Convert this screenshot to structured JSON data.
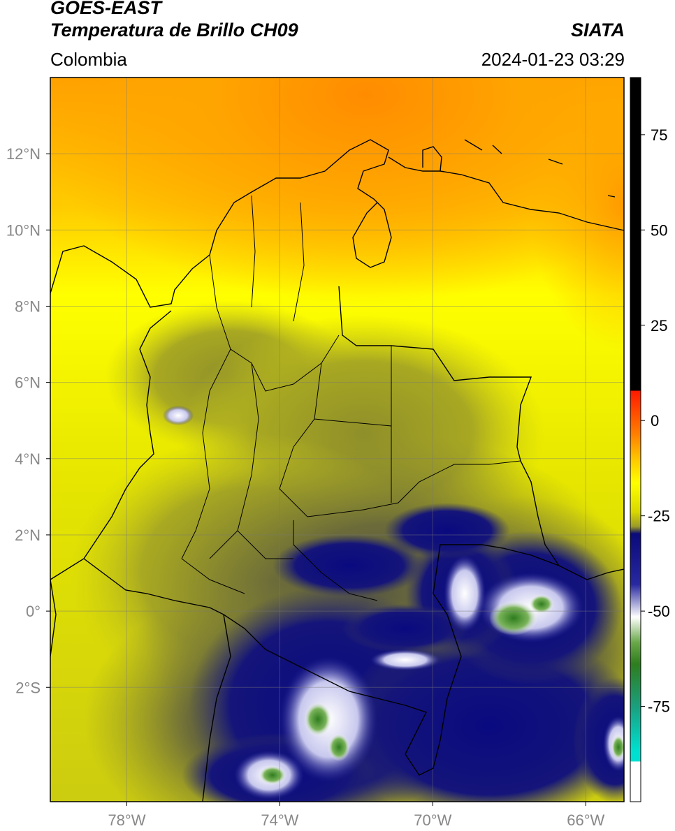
{
  "header": {
    "satellite": "GOES-EAST",
    "product": "Temperatura de Brillo CH09",
    "region": "Colombia",
    "agency": "SIATA",
    "datetime": "2024-01-23 03:29"
  },
  "map": {
    "lon_range": [
      -80,
      -65
    ],
    "lat_range": [
      -5,
      14
    ],
    "lon_ticks": [
      {
        "value": -78,
        "label": "78°W"
      },
      {
        "value": -74,
        "label": "74°W"
      },
      {
        "value": -70,
        "label": "70°W"
      },
      {
        "value": -66,
        "label": "66°W"
      }
    ],
    "lat_ticks": [
      {
        "value": 12,
        "label": "12°N"
      },
      {
        "value": 10,
        "label": "10°N"
      },
      {
        "value": 8,
        "label": "8°N"
      },
      {
        "value": 6,
        "label": "6°N"
      },
      {
        "value": 4,
        "label": "4°N"
      },
      {
        "value": 2,
        "label": "2°N"
      },
      {
        "value": 0,
        "label": "0°"
      },
      {
        "value": -2,
        "label": "2°S"
      }
    ],
    "grid": true
  },
  "colorbar": {
    "range": [
      -100,
      90
    ],
    "ticks": [
      {
        "value": 75,
        "label": "75"
      },
      {
        "value": 50,
        "label": "50"
      },
      {
        "value": 25,
        "label": "25"
      },
      {
        "value": 0,
        "label": "0"
      },
      {
        "value": -25,
        "label": "-25"
      },
      {
        "value": -50,
        "label": "-50"
      },
      {
        "value": -75,
        "label": "-75"
      }
    ],
    "colors": {
      "warm_black": "#000000",
      "red": "#ff1a00",
      "orange": "#ff9900",
      "yellow": "#ffff00",
      "olive": "#b5b51e",
      "dark_gray": "#555544",
      "navy": "#0a0a7a",
      "white": "#ffffff",
      "green": "#2e7d1e",
      "cyan": "#00e0d0"
    }
  }
}
